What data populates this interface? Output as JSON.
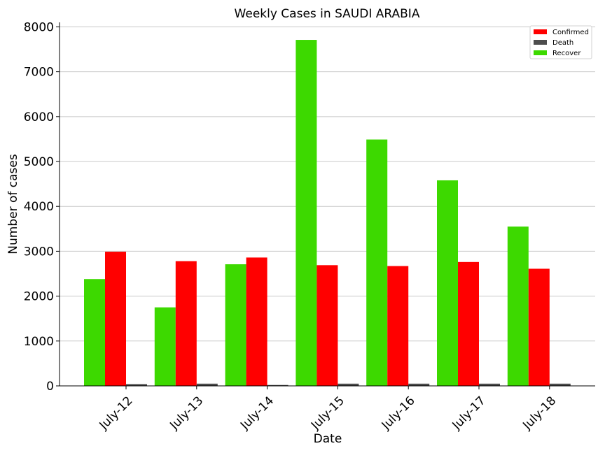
{
  "chart_data": {
    "type": "bar",
    "title": "Weekly Cases in SAUDI ARABIA",
    "xlabel": "Date",
    "ylabel": "Number of cases",
    "categories": [
      "July-12",
      "July-13",
      "July-14",
      "July-15",
      "July-16",
      "July-17",
      "July-18"
    ],
    "series": [
      {
        "name": "Recover",
        "color": "#3dd900",
        "values": [
          2380,
          1750,
          2710,
          7710,
          5490,
          4580,
          3550
        ]
      },
      {
        "name": "Confirmed",
        "color": "#ff0000",
        "values": [
          2990,
          2780,
          2860,
          2690,
          2670,
          2760,
          2610
        ]
      },
      {
        "name": "Death",
        "color": "#4d4d4d",
        "values": [
          40,
          50,
          20,
          50,
          50,
          50,
          50
        ]
      }
    ],
    "legend_order": [
      "Confirmed",
      "Death",
      "Recover"
    ],
    "ylim": [
      0,
      8100
    ],
    "yticks": [
      0,
      1000,
      2000,
      3000,
      4000,
      5000,
      6000,
      7000,
      8000
    ],
    "grid": "horizontal",
    "legend_position": "top-right"
  }
}
